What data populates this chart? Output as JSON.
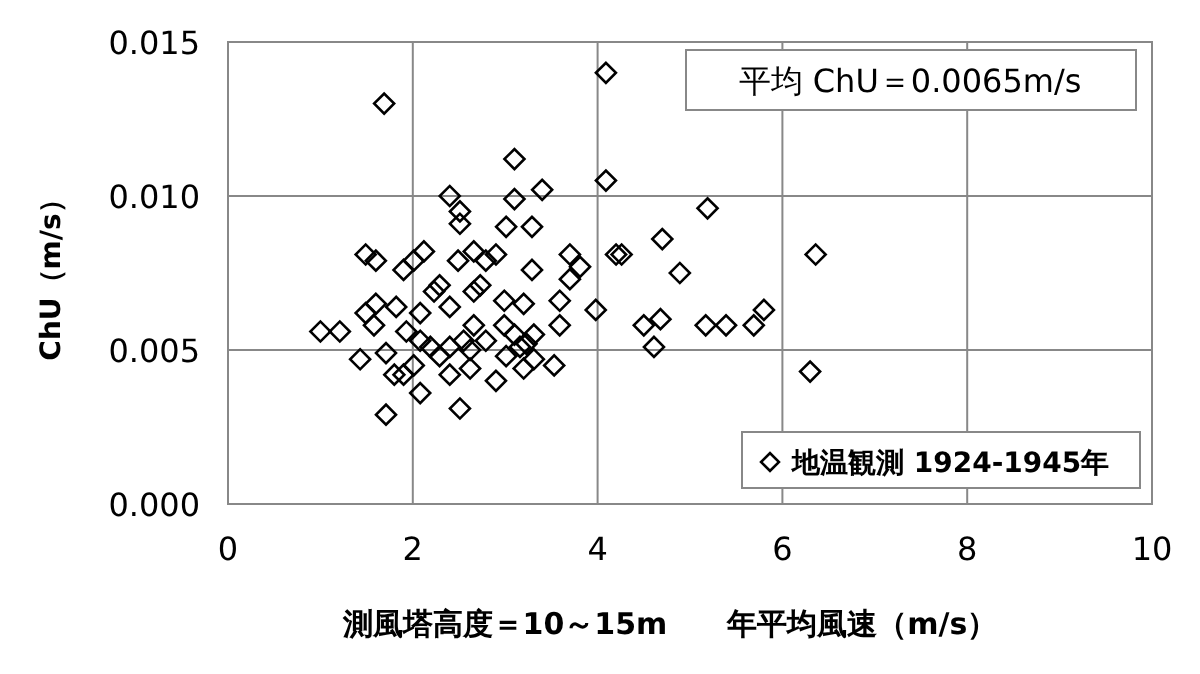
{
  "chart_data": {
    "type": "scatter",
    "xlabel": "測風塔高度＝10～15m　　年平均風速（m/s）",
    "ylabel": "ChU（m/s）",
    "annotations": [
      "平均 ChU＝0.0065m/s"
    ],
    "xlim": [
      0,
      10
    ],
    "xticks": [
      0,
      2,
      4,
      6,
      8,
      10
    ],
    "ylim": [
      0,
      0.015
    ],
    "yticks": [
      {
        "value": 0,
        "label": "0.000"
      },
      {
        "value": 0.005,
        "label": "0.005"
      },
      {
        "value": 0.01,
        "label": "0.010"
      },
      {
        "value": 0.015,
        "label": "0.015"
      }
    ],
    "grid": true,
    "legend": "bottom right",
    "marker": "diamond",
    "series": [
      {
        "name": "地温観測 1924-1945年",
        "color": "#000000",
        "x": [
          1.49,
          1.6,
          1.9,
          2.01,
          2.12,
          2.49,
          2.66,
          2.79,
          2.9,
          3.29,
          3.7,
          3.81,
          3.7,
          3.98,
          2.23,
          2.29,
          2.66,
          2.73,
          1.6,
          1.82,
          1.49,
          1.58,
          1.0,
          1.21,
          2.08,
          2.4,
          2.99,
          3.2,
          3.59,
          3.59,
          1.43,
          1.71,
          1.8,
          1.9,
          2.08,
          1.71,
          2.51,
          2.08,
          2.19,
          2.29,
          2.4,
          2.55,
          2.62,
          2.4,
          2.62,
          2.79,
          2.9,
          3.01,
          3.1,
          3.16,
          3.23,
          3.31,
          3.2,
          3.31,
          3.53,
          2.99,
          2.66,
          1.93,
          2.01,
          4.68,
          4.61,
          4.5,
          4.2,
          1.69,
          4.09,
          4.09,
          3.1,
          2.4,
          3.1,
          3.4,
          2.51,
          2.51,
          3.01,
          3.29,
          4.26,
          4.7,
          5.19,
          6.36,
          4.89,
          5.17,
          5.39,
          5.69,
          5.8,
          6.3
        ],
        "values": [
          0.0081,
          0.0079,
          0.0076,
          0.0079,
          0.0082,
          0.0079,
          0.0082,
          0.0079,
          0.0081,
          0.0076,
          0.0081,
          0.0077,
          0.0073,
          0.0063,
          0.0069,
          0.0071,
          0.0069,
          0.0071,
          0.0065,
          0.0064,
          0.0062,
          0.0058,
          0.0056,
          0.0056,
          0.0062,
          0.0064,
          0.0066,
          0.0065,
          0.0066,
          0.0058,
          0.0047,
          0.0049,
          0.0042,
          0.0042,
          0.0036,
          0.0029,
          0.0031,
          0.0053,
          0.0051,
          0.0048,
          0.0051,
          0.0053,
          0.005,
          0.0042,
          0.0044,
          0.0053,
          0.004,
          0.0048,
          0.0055,
          0.0051,
          0.0052,
          0.0055,
          0.0044,
          0.0047,
          0.0045,
          0.0058,
          0.0058,
          0.0056,
          0.0045,
          0.006,
          0.0051,
          0.0058,
          0.0081,
          0.013,
          0.014,
          0.0105,
          0.0112,
          0.01,
          0.0099,
          0.0102,
          0.0095,
          0.0091,
          0.009,
          0.009,
          0.0081,
          0.0086,
          0.0096,
          0.0081,
          0.0075,
          0.0058,
          0.0058,
          0.0058,
          0.0063,
          0.0043
        ]
      }
    ]
  }
}
